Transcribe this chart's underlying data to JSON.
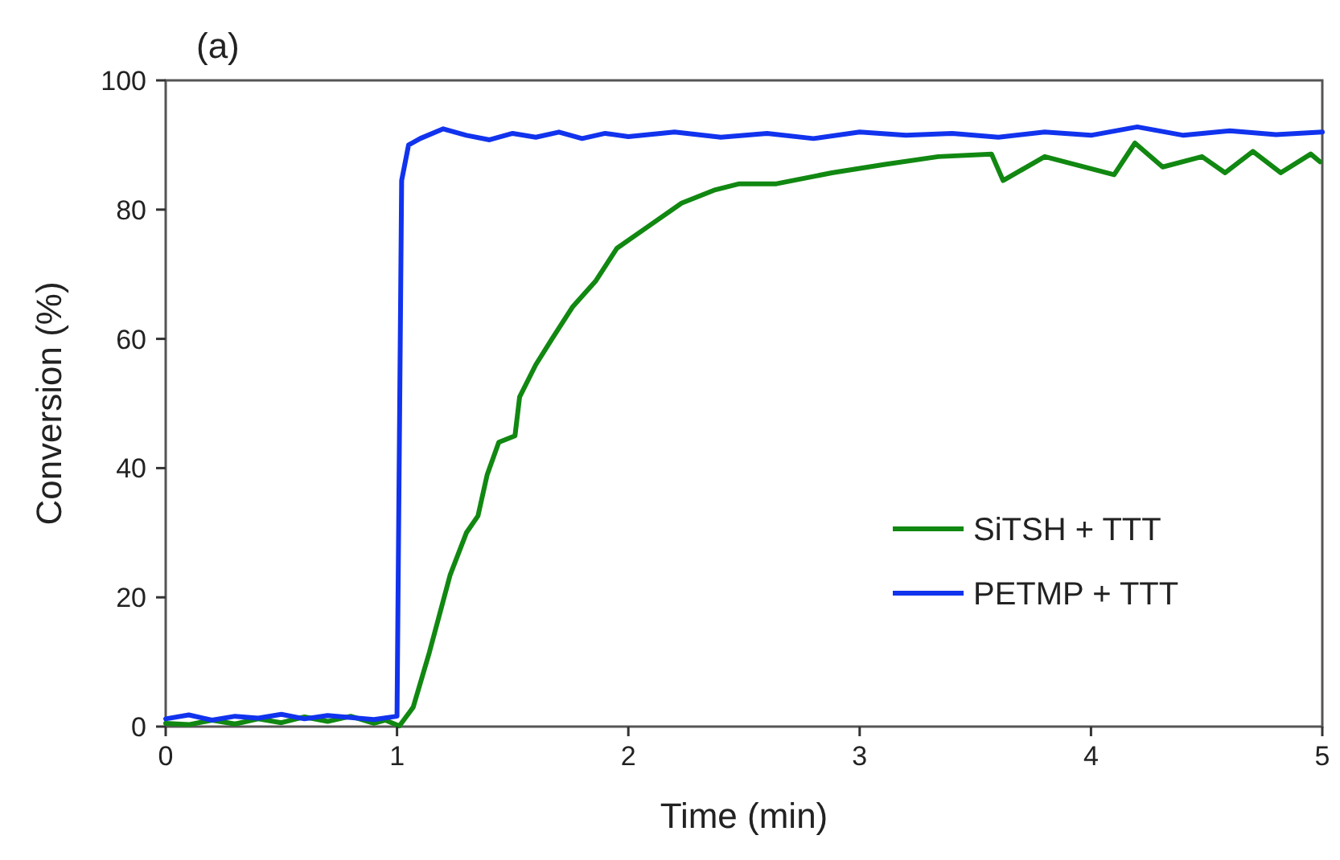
{
  "chart_data": {
    "type": "line",
    "title": "(a)",
    "xlabel": "Time (min)",
    "ylabel": "Conversion (%)",
    "xlim": [
      0,
      5
    ],
    "ylim": [
      0,
      100
    ],
    "xticks": [
      0,
      1,
      2,
      3,
      4,
      5
    ],
    "yticks": [
      0,
      20,
      40,
      60,
      80,
      100
    ],
    "grid": false,
    "legend": "bottom right",
    "marker": "none",
    "line_style": "solid",
    "series": [
      {
        "name": "SiTSH + TTT",
        "color": "#118811",
        "x": [
          0,
          0.1,
          0.2,
          0.3,
          0.4,
          0.5,
          0.6,
          0.7,
          0.8,
          0.9,
          0.95,
          1.01,
          1.07,
          1.14,
          1.23,
          1.3,
          1.35,
          1.39,
          1.44,
          1.51,
          1.53,
          1.6,
          1.67,
          1.76,
          1.86,
          1.95,
          2.09,
          2.23,
          2.37,
          2.48,
          2.64,
          2.88,
          3.11,
          3.34,
          3.57,
          3.62,
          3.8,
          4.1,
          4.19,
          4.31,
          4.48,
          4.58,
          4.7,
          4.82,
          4.95,
          4.99
        ],
        "values": [
          0.5,
          0.3,
          1,
          0.4,
          1.2,
          0.6,
          1.5,
          0.8,
          1.6,
          0.5,
          1,
          0.1,
          3,
          11.5,
          23.5,
          30,
          32.6,
          39,
          44,
          45,
          51,
          56,
          60,
          65,
          69,
          74,
          77.5,
          81,
          83,
          84,
          84,
          85.7,
          87,
          88.2,
          88.6,
          84.5,
          88.2,
          85.4,
          90.3,
          86.6,
          88.2,
          85.7,
          89,
          85.7,
          88.6,
          87.4
        ]
      },
      {
        "name": "PETMP + TTT",
        "color": "#1133ee",
        "x": [
          0,
          0.1,
          0.2,
          0.3,
          0.4,
          0.5,
          0.6,
          0.7,
          0.8,
          0.9,
          1.0,
          1.02,
          1.05,
          1.1,
          1.2,
          1.3,
          1.4,
          1.5,
          1.6,
          1.7,
          1.8,
          1.9,
          2.0,
          2.2,
          2.4,
          2.6,
          2.8,
          3.0,
          3.2,
          3.4,
          3.6,
          3.8,
          4.0,
          4.2,
          4.4,
          4.6,
          4.8,
          5.0
        ],
        "values": [
          1.2,
          1.8,
          1.0,
          1.6,
          1.3,
          1.9,
          1.2,
          1.7,
          1.4,
          1.1,
          1.6,
          84.5,
          90,
          91,
          92.5,
          91.5,
          90.8,
          91.8,
          91.2,
          92,
          91,
          91.8,
          91.3,
          92,
          91.2,
          91.8,
          91,
          92,
          91.5,
          91.8,
          91.2,
          92,
          91.5,
          92.8,
          91.5,
          92.2,
          91.6,
          92
        ]
      }
    ]
  }
}
